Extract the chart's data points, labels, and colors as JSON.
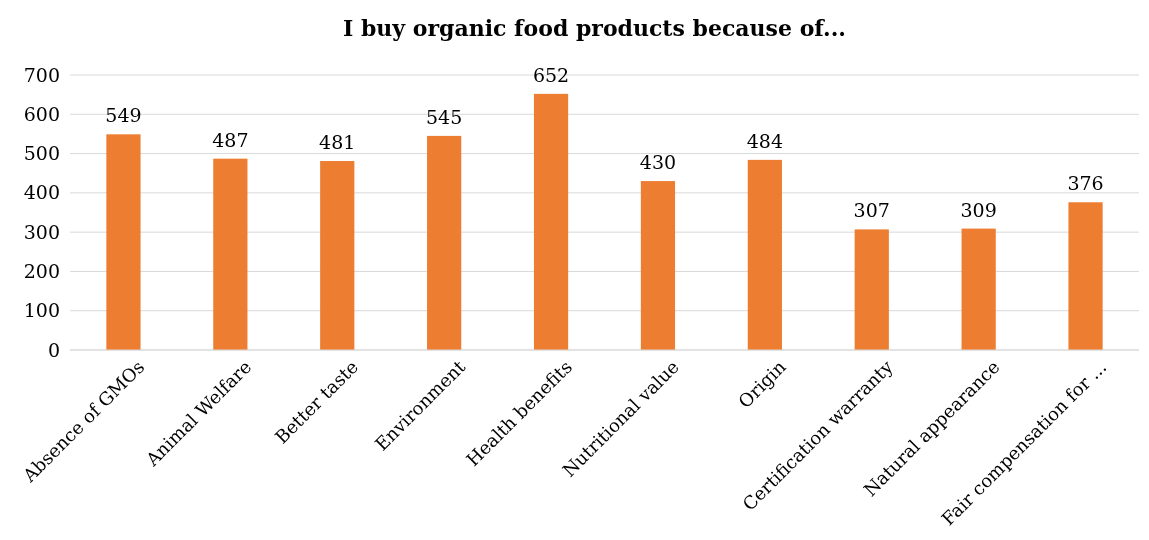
{
  "chart_data": {
    "type": "bar",
    "title": "I buy organic food products because of...",
    "categories": [
      "Absence of GMOs",
      "Animal Welfare",
      "Better taste",
      "Environment",
      "Health benefits",
      "Nutritional value",
      "Origin",
      "Certification warranty",
      "Natural appearance",
      "Fair compensation for ..."
    ],
    "values": [
      549,
      487,
      481,
      545,
      652,
      430,
      484,
      307,
      309,
      376
    ],
    "color": "#ed7d31",
    "ylim": [
      0,
      700
    ],
    "yticks": [
      0,
      100,
      200,
      300,
      400,
      500,
      600,
      700
    ],
    "grid": "y",
    "data_labels": true
  }
}
